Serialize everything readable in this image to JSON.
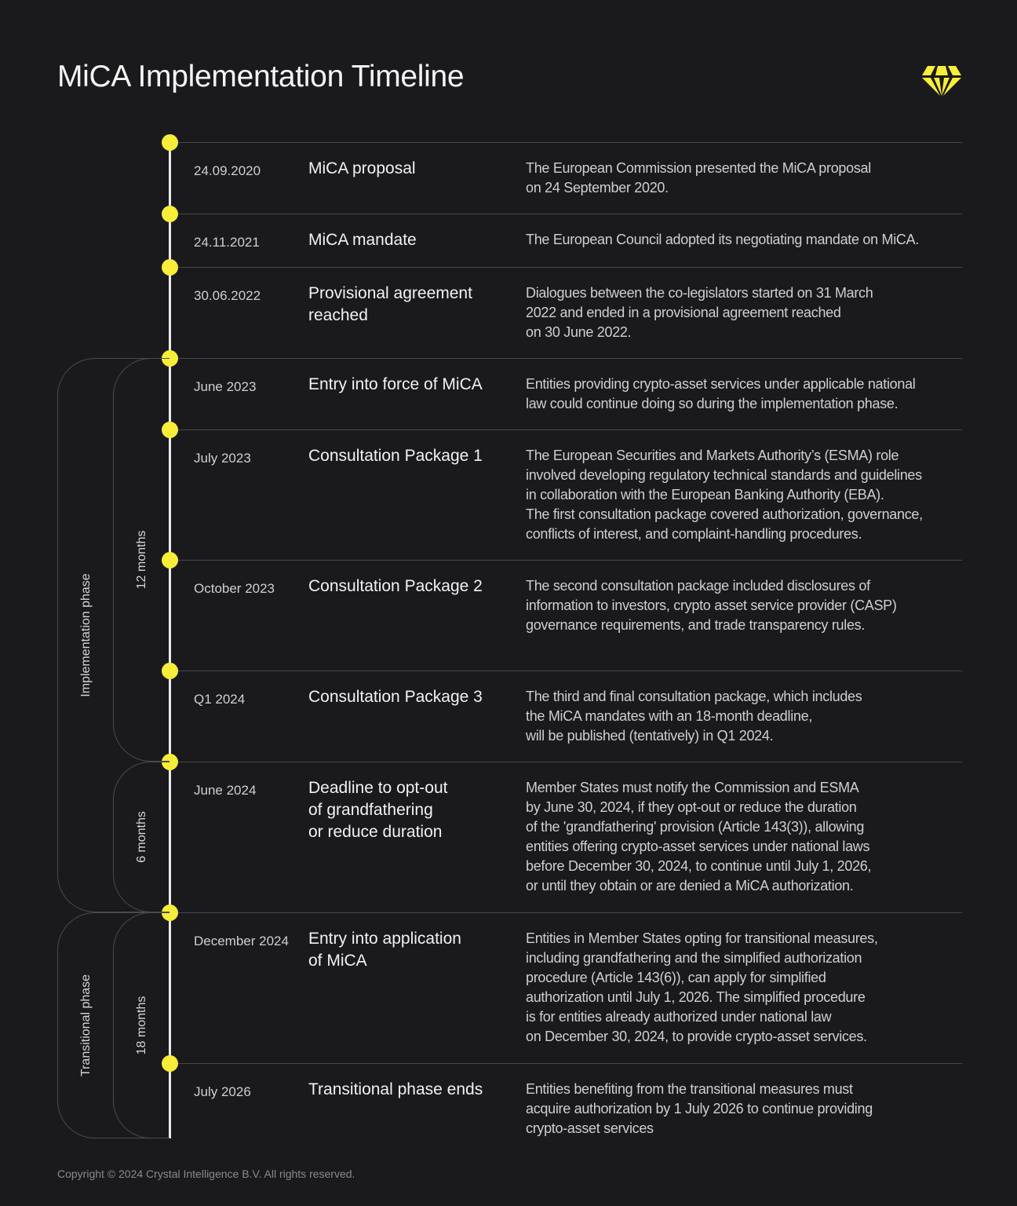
{
  "title": "MiCA Implementation Timeline",
  "logo": {
    "icon": "crystal-diamond-icon",
    "color": "#f7ee3a"
  },
  "colors": {
    "background": "#1a191c",
    "accent": "#f7ee3a"
  },
  "events": [
    {
      "date": "24.09.2020",
      "title": "MiCA proposal",
      "description": "The European Commission presented the MiCA proposal\non 24 September 2020."
    },
    {
      "date": "24.11.2021",
      "title": "MiCA mandate",
      "description": "The European Council adopted its negotiating mandate on MiCA."
    },
    {
      "date": "30.06.2022",
      "title": "Provisional agreement\nreached",
      "description": "Dialogues between the co-legislators started on 31 March\n2022 and ended in a provisional agreement reached\non 30 June 2022."
    },
    {
      "date": "June 2023",
      "title": "Entry into force of MiCA",
      "description": "Entities providing crypto-asset services under applicable national\nlaw could continue doing so during the implementation phase."
    },
    {
      "date": "July 2023",
      "title": "Consultation Package 1",
      "description": "The European Securities and Markets Authority’s (ESMA) role\ninvolved developing regulatory technical standards and guidelines\nin collaboration with the European Banking Authority (EBA).\nThe first consultation package covered authorization, governance,\nconflicts of interest, and complaint-handling procedures."
    },
    {
      "date": "October 2023",
      "title": "Consultation Package 2",
      "description": "The second consultation package included disclosures of\ninformation to investors, crypto asset service provider (CASP)\ngovernance requirements, and trade transparency rules."
    },
    {
      "date": "Q1 2024",
      "title": "Consultation Package 3",
      "description": "The third and final consultation package, which includes\nthe MiCA mandates with an 18-month deadline,\nwill be published (tentatively) in Q1 2024."
    },
    {
      "date": "June 2024",
      "title": "Deadline to opt-out\nof grandfathering\nor reduce duration",
      "description": "Member States must notify the Commission and ESMA\nby June 30, 2024, if they opt-out or reduce the duration\nof the 'grandfathering' provision (Article 143(3)), allowing\nentities offering crypto-asset services under national laws\nbefore December 30, 2024, to continue until July 1, 2026,\nor until they obtain or are denied a MiCA authorization."
    },
    {
      "date": "December 2024",
      "title": "Entry into application\nof MiCA",
      "description": "Entities in Member States opting for transitional measures,\nincluding grandfathering and the simplified authorization\nprocedure (Article 143(6)), can apply for simplified\nauthorization until July 1, 2026. The simplified procedure\nis for entities already authorized under national law\non December 30, 2024, to provide crypto-asset services."
    },
    {
      "date": "July 2026",
      "title": "Transitional phase ends",
      "description": "Entities benefiting from the transitional measures must\nacquire authorization by 1 July 2026 to continue providing\ncrypto-asset services"
    }
  ],
  "phases": [
    {
      "label": "Implementation phase"
    },
    {
      "label": "12 months"
    },
    {
      "label": "6 months"
    },
    {
      "label": "Transitional phase"
    },
    {
      "label": "18 months"
    }
  ],
  "footer": "Copyright © 2024 Crystal Intelligence B.V. All rights reserved."
}
